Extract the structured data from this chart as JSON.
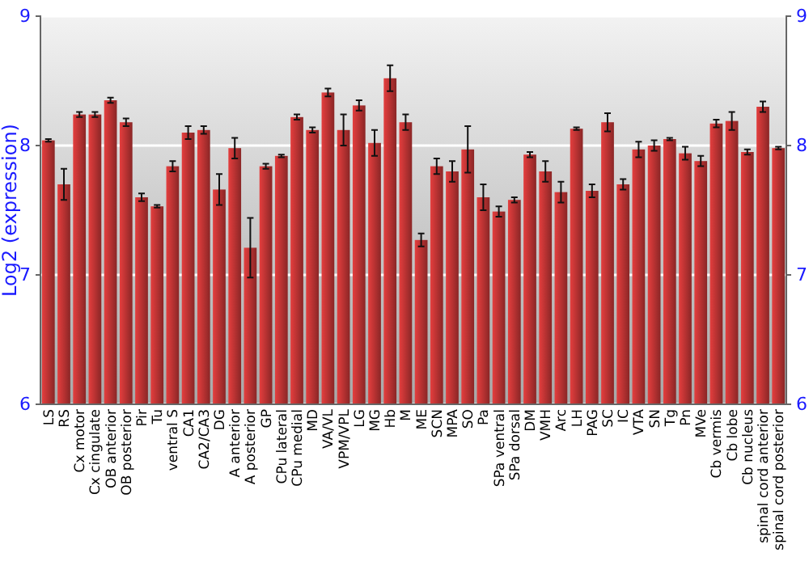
{
  "chart_data": {
    "type": "bar",
    "ylabel": "Log2 (expression)",
    "categories": [
      "LS",
      "RS",
      "Cx motor",
      "Cx cingulate",
      "OB anterior",
      "OB posterior",
      "Pir",
      "Tu",
      "ventral S",
      "CA1",
      "CA2/CA3",
      "DG",
      "A anterior",
      "A posterior",
      "GP",
      "CPu lateral",
      "CPu medial",
      "MD",
      "VA/VL",
      "VPM/VPL",
      "LG",
      "MG",
      "Hb",
      "M",
      "ME",
      "SCN",
      "MPA",
      "SO",
      "Pa",
      "SPa ventral",
      "SPa dorsal",
      "DM",
      "VMH",
      "Arc",
      "LH",
      "PAG",
      "SC",
      "IC",
      "VTA",
      "SN",
      "Tg",
      "Pn",
      "MVe",
      "Cb vermis",
      "Cb lobe",
      "Cb nucleus",
      "spinal cord anterior",
      "spinal cord posterior"
    ],
    "values": [
      8.04,
      7.7,
      8.24,
      8.24,
      8.35,
      8.18,
      7.6,
      7.53,
      7.84,
      8.1,
      8.12,
      7.66,
      7.98,
      7.21,
      7.84,
      7.92,
      8.22,
      8.12,
      8.41,
      8.12,
      8.31,
      8.02,
      8.52,
      8.18,
      7.27,
      7.84,
      7.8,
      7.97,
      7.6,
      7.49,
      7.58,
      7.93,
      7.8,
      7.64,
      8.13,
      7.65,
      8.18,
      7.7,
      7.97,
      8.0,
      8.05,
      7.94,
      7.88,
      8.17,
      8.19,
      7.95,
      8.3,
      7.98
    ],
    "errors": [
      0.01,
      0.12,
      0.02,
      0.02,
      0.02,
      0.03,
      0.03,
      0.01,
      0.04,
      0.05,
      0.03,
      0.12,
      0.08,
      0.23,
      0.02,
      0.01,
      0.02,
      0.02,
      0.03,
      0.12,
      0.04,
      0.1,
      0.1,
      0.06,
      0.05,
      0.06,
      0.08,
      0.18,
      0.1,
      0.04,
      0.02,
      0.02,
      0.08,
      0.08,
      0.01,
      0.05,
      0.07,
      0.04,
      0.06,
      0.04,
      0.01,
      0.05,
      0.04,
      0.03,
      0.07,
      0.02,
      0.04,
      0.01
    ],
    "color": "#b83232",
    "ylim": [
      6,
      9
    ],
    "yticks": [
      6,
      7,
      8,
      9
    ],
    "y2lim": [
      6,
      9
    ],
    "y2ticks": [
      6,
      7,
      8,
      9
    ],
    "grid": "y"
  }
}
